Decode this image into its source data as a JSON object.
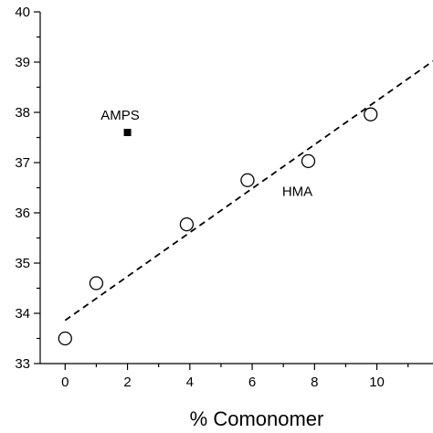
{
  "chart_data": {
    "type": "scatter",
    "xlabel": "% Comonomer",
    "ylabel": "",
    "xlim": [
      -0.8,
      11.8
    ],
    "ylim": [
      33,
      40
    ],
    "x_ticks": [
      0,
      2,
      4,
      6,
      8,
      10
    ],
    "y_ticks": [
      33,
      34,
      35,
      36,
      37,
      38,
      39,
      40
    ],
    "series": [
      {
        "name": "HMA",
        "marker": "open-circle",
        "points": [
          {
            "x": 0.0,
            "y": 33.5
          },
          {
            "x": 1.0,
            "y": 34.6
          },
          {
            "x": 3.9,
            "y": 35.77
          },
          {
            "x": 5.85,
            "y": 36.65
          },
          {
            "x": 7.8,
            "y": 37.03
          },
          {
            "x": 9.8,
            "y": 37.96
          }
        ]
      },
      {
        "name": "AMPS",
        "marker": "filled-square",
        "points": [
          {
            "x": 2.0,
            "y": 37.6
          }
        ]
      }
    ],
    "fit_line": {
      "style": "dashed",
      "from": {
        "x": 0.0,
        "y": 33.86
      },
      "to": {
        "x": 11.8,
        "y": 39.02
      }
    },
    "annotations": [
      {
        "text": "AMPS",
        "x": 2.0,
        "y": 37.6
      },
      {
        "text": "HMA",
        "x": 7.8,
        "y": 37.03
      }
    ],
    "grid": false,
    "legend": "none"
  }
}
